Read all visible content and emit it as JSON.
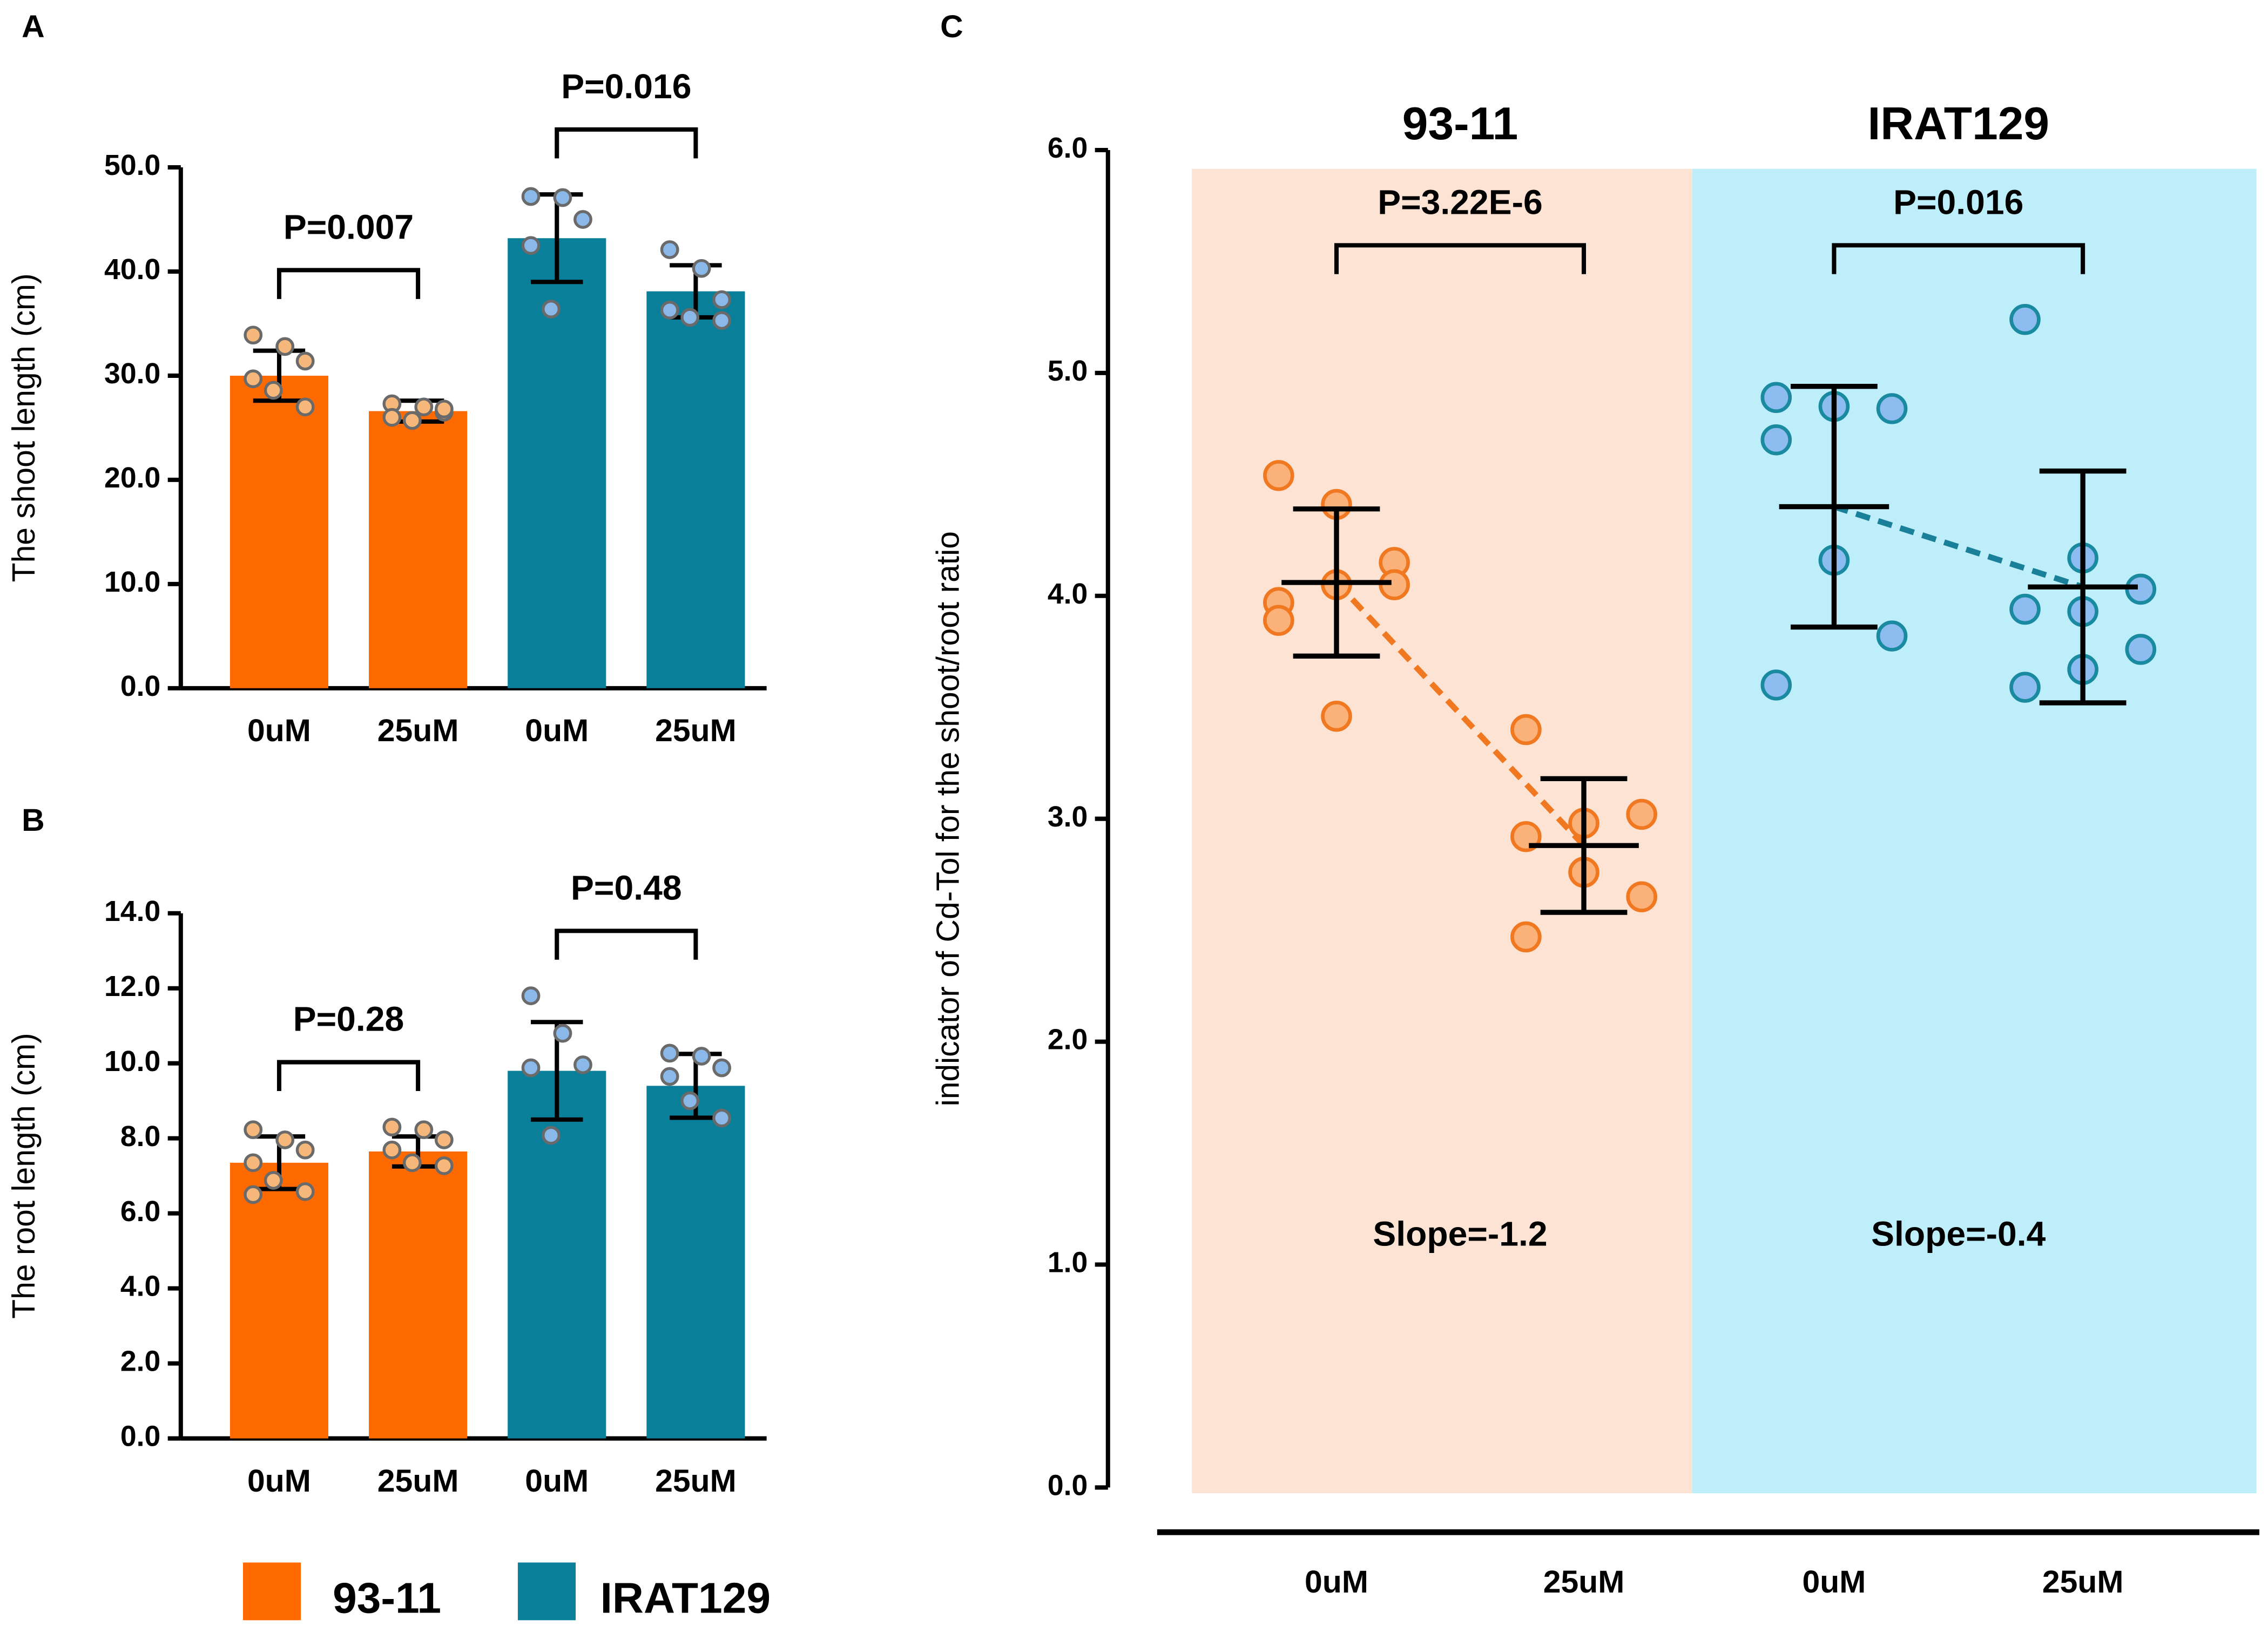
{
  "legend": [
    {
      "name": "93-11",
      "color": "#ff6a00"
    },
    {
      "name": "IRAT129",
      "color": "#0a7f99"
    }
  ],
  "chart_data": [
    {
      "type": "bar",
      "panel": "A",
      "ylabel": "The shoot length (cm)",
      "categories": [
        "0uM",
        "25uM",
        "0uM",
        "25uM"
      ],
      "values": [
        30,
        26.6,
        43.2,
        38.1
      ],
      "errors": [
        2.4,
        1,
        4.2,
        2.5
      ],
      "colors": [
        "#ff6a00",
        "#ff6a00",
        "#0a7f99",
        "#0a7f99"
      ],
      "point_colors": [
        "#f6b87a",
        "#f6b87a",
        "#8ab8e8",
        "#8ab8e8"
      ],
      "points": [
        [
          33.9,
          32.8,
          31.4,
          29.7,
          28.6,
          27
        ],
        [
          27.3,
          27,
          26.5,
          26,
          25.7,
          26.8
        ],
        [
          47.2,
          47.1,
          45,
          42.5,
          36.4
        ],
        [
          42.1,
          40.3,
          37.3,
          36.3,
          35.6,
          35.3
        ]
      ],
      "annotations": [
        {
          "pair": [
            0,
            1
          ],
          "text": "P=0.007"
        },
        {
          "pair": [
            2,
            3
          ],
          "text": "P=0.016"
        }
      ],
      "ylim": [
        0,
        50
      ],
      "yticks": [
        {
          "value": 0,
          "label": "0.0"
        },
        {
          "value": 10,
          "label": "10.0"
        },
        {
          "value": 20,
          "label": "20.0"
        },
        {
          "value": 30,
          "label": "30.0"
        },
        {
          "value": 40,
          "label": "40.0"
        },
        {
          "value": 50,
          "label": "50.0"
        }
      ]
    },
    {
      "type": "bar",
      "panel": "B",
      "ylabel": "The root length (cm)",
      "categories": [
        "0uM",
        "25uM",
        "0uM",
        "25uM"
      ],
      "values": [
        7.35,
        7.65,
        9.8,
        9.4
      ],
      "errors": [
        0.7,
        0.4,
        1.3,
        0.85
      ],
      "colors": [
        "#ff6a00",
        "#ff6a00",
        "#0a7f99",
        "#0a7f99"
      ],
      "point_colors": [
        "#f6b87a",
        "#f6b87a",
        "#8ab8e8",
        "#8ab8e8"
      ],
      "points": [
        [
          8.23,
          7.96,
          7.69,
          7.35,
          6.88,
          6.58,
          6.5
        ],
        [
          8.3,
          8.23,
          7.96,
          7.69,
          7.35,
          7.27
        ],
        [
          11.8,
          10.8,
          9.96,
          9.88,
          8.08
        ],
        [
          10.27,
          10.19,
          9.88,
          9.65,
          9,
          8.54
        ]
      ],
      "annotations": [
        {
          "pair": [
            0,
            1
          ],
          "text": "P=0.28"
        },
        {
          "pair": [
            2,
            3
          ],
          "text": "P=0.48"
        }
      ],
      "ylim": [
        0,
        14
      ],
      "yticks": [
        {
          "value": 0,
          "label": "0.0"
        },
        {
          "value": 2,
          "label": "2.0"
        },
        {
          "value": 4,
          "label": "4.0"
        },
        {
          "value": 6,
          "label": "6.0"
        },
        {
          "value": 8,
          "label": "8.0"
        },
        {
          "value": 10,
          "label": "10.0"
        },
        {
          "value": 12,
          "label": "12.0"
        },
        {
          "value": 14,
          "label": "14.0"
        }
      ]
    },
    {
      "type": "scatter",
      "panel": "C",
      "ylabel": "indicator of Cd-Tol for the shoot/root ratio",
      "categories": [
        "0uM",
        "25uM",
        "0uM",
        "25uM"
      ],
      "groups": [
        {
          "name": "93-11",
          "background": "#fde3d3",
          "point_fill": "#fbb27a",
          "point_stroke": "#f07820",
          "line_color": "#f07820",
          "p_text": "P=3.22E-6",
          "slope_text": "Slope=-1.2"
        },
        {
          "name": "IRAT129",
          "background": "#bdeefa",
          "point_fill": "#8cbcf0",
          "point_stroke": "#1a8aa0",
          "line_color": "#1a7f99",
          "p_text": "P=0.016",
          "slope_text": "Slope=-0.4"
        }
      ],
      "means": [
        4.06,
        2.88,
        4.4,
        4.04
      ],
      "sds": [
        0.33,
        0.3,
        0.54,
        0.52
      ],
      "points": [
        [
          4.54,
          4.41,
          4.15,
          3.97,
          4.05,
          4.05,
          3.89,
          3.46
        ],
        [
          3.4,
          2.98,
          3.02,
          2.92,
          2.76,
          2.65,
          2.47
        ],
        [
          4.89,
          4.85,
          4.84,
          4.7,
          4.16,
          3.82,
          3.6
        ],
        [
          5.24,
          4.17,
          4.03,
          3.94,
          3.93,
          3.76,
          3.59,
          3.67
        ]
      ],
      "ylim": [
        0,
        6
      ],
      "yticks": [
        {
          "value": 0,
          "label": "0.0"
        },
        {
          "value": 1,
          "label": "1.0"
        },
        {
          "value": 2,
          "label": "2.0"
        },
        {
          "value": 3,
          "label": "3.0"
        },
        {
          "value": 4,
          "label": "4.0"
        },
        {
          "value": 5,
          "label": "5.0"
        },
        {
          "value": 6,
          "label": "6.0"
        }
      ]
    }
  ]
}
